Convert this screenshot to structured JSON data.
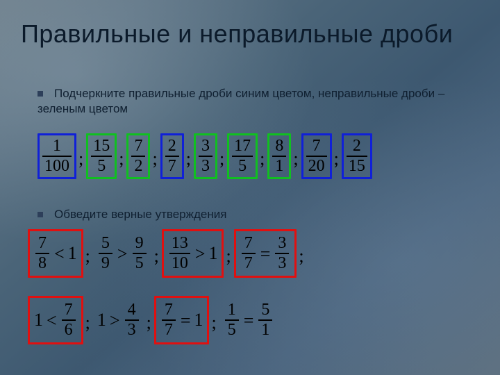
{
  "title": "Правильные и неправильные дроби",
  "bullet1": "Подчеркните правильные дроби синим цветом, неправильные дроби – зеленым цветом",
  "bullet2": "Обведите верные утверждения",
  "row1": {
    "items": [
      {
        "num": "1",
        "den": "100",
        "color": "blue"
      },
      {
        "num": "15",
        "den": "5",
        "color": "green"
      },
      {
        "num": "7",
        "den": "2",
        "color": "green"
      },
      {
        "num": "2",
        "den": "7",
        "color": "blue"
      },
      {
        "num": "3",
        "den": "3",
        "color": "green"
      },
      {
        "num": "17",
        "den": "5",
        "color": "green"
      },
      {
        "num": "8",
        "den": "1",
        "color": "green"
      },
      {
        "num": "7",
        "den": "20",
        "color": "blue"
      },
      {
        "num": "2",
        "den": "15",
        "color": "blue"
      }
    ]
  },
  "row2a": [
    {
      "type": "expr",
      "box": "red",
      "parts": [
        {
          "f": [
            "7",
            "8"
          ]
        },
        {
          "op": "<"
        },
        {
          "w": "1"
        }
      ]
    },
    {
      "type": "semi"
    },
    {
      "type": "expr",
      "box": null,
      "parts": [
        {
          "f": [
            "5",
            "9"
          ]
        },
        {
          "op": ">"
        },
        {
          "f": [
            "9",
            "5"
          ]
        }
      ]
    },
    {
      "type": "semi"
    },
    {
      "type": "expr",
      "box": "red",
      "parts": [
        {
          "f": [
            "13",
            "10"
          ]
        },
        {
          "op": ">"
        },
        {
          "w": "1"
        }
      ]
    },
    {
      "type": "semi"
    },
    {
      "type": "expr",
      "box": "red",
      "parts": [
        {
          "f": [
            "7",
            "7"
          ]
        },
        {
          "op": "="
        },
        {
          "f": [
            "3",
            "3"
          ]
        }
      ]
    },
    {
      "type": "semi"
    }
  ],
  "row2b": [
    {
      "type": "expr",
      "box": "red",
      "parts": [
        {
          "w": "1"
        },
        {
          "op": "<"
        },
        {
          "f": [
            "7",
            "6"
          ]
        }
      ]
    },
    {
      "type": "semi"
    },
    {
      "type": "expr",
      "box": null,
      "parts": [
        {
          "w": "1"
        },
        {
          "op": ">"
        },
        {
          "f": [
            "4",
            "3"
          ]
        }
      ]
    },
    {
      "type": "semi"
    },
    {
      "type": "expr",
      "box": "red",
      "parts": [
        {
          "f": [
            "7",
            "7"
          ]
        },
        {
          "op": "="
        },
        {
          "w": "1"
        }
      ]
    },
    {
      "type": "semi"
    },
    {
      "type": "expr",
      "box": null,
      "parts": [
        {
          "f": [
            "1",
            "5"
          ]
        },
        {
          "op": "="
        },
        {
          "f": [
            "5",
            "1"
          ]
        }
      ]
    }
  ],
  "colors": {
    "blue": "#1020d8",
    "green": "#10c020",
    "red": "#e01010",
    "text": "#0b1a2a"
  }
}
